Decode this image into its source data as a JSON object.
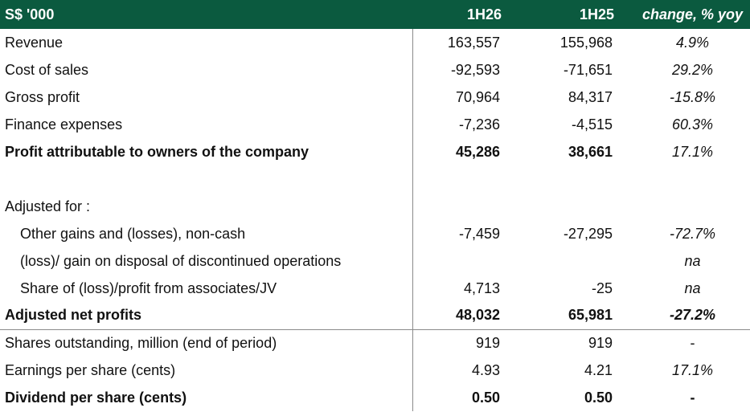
{
  "header": {
    "label": "S$ '000",
    "col1": "1H26",
    "col2": "1H25",
    "col3": "change, % yoy"
  },
  "rows": [
    {
      "label": "Revenue",
      "v1": "163,557",
      "v2": "155,968",
      "chg": "4.9%"
    },
    {
      "label": "Cost of sales",
      "v1": "-92,593",
      "v2": "-71,651",
      "chg": "29.2%"
    },
    {
      "label": "Gross profit",
      "v1": "70,964",
      "v2": "84,317",
      "chg": "-15.8%"
    },
    {
      "label": "Finance expenses",
      "v1": "-7,236",
      "v2": "-4,515",
      "chg": "60.3%"
    },
    {
      "label": "Profit attributable to owners of the company",
      "v1": "45,286",
      "v2": "38,661",
      "chg": "17.1%"
    },
    {
      "label": "",
      "v1": "",
      "v2": "",
      "chg": ""
    },
    {
      "label": "Adjusted for :",
      "v1": "",
      "v2": "",
      "chg": ""
    },
    {
      "label": "Other gains and (losses), non-cash",
      "v1": "-7,459",
      "v2": "-27,295",
      "chg": "-72.7%"
    },
    {
      "label": "(loss)/ gain on disposal of discontinued operations",
      "v1": "",
      "v2": "",
      "chg": "na"
    },
    {
      "label": "Share of (loss)/profit from associates/JV",
      "v1": "4,713",
      "v2": "-25",
      "chg": "na"
    },
    {
      "label": "Adjusted net profits",
      "v1": "48,032",
      "v2": "65,981",
      "chg": "-27.2%"
    },
    {
      "label": "Shares outstanding, million (end of period)",
      "v1": "919",
      "v2": "919",
      "chg": "-"
    },
    {
      "label": "Earnings per share (cents)",
      "v1": "4.93",
      "v2": "4.21",
      "chg": "17.1%"
    },
    {
      "label": "Dividend per share (cents)",
      "v1": "0.50",
      "v2": "0.50",
      "chg": "-"
    }
  ]
}
